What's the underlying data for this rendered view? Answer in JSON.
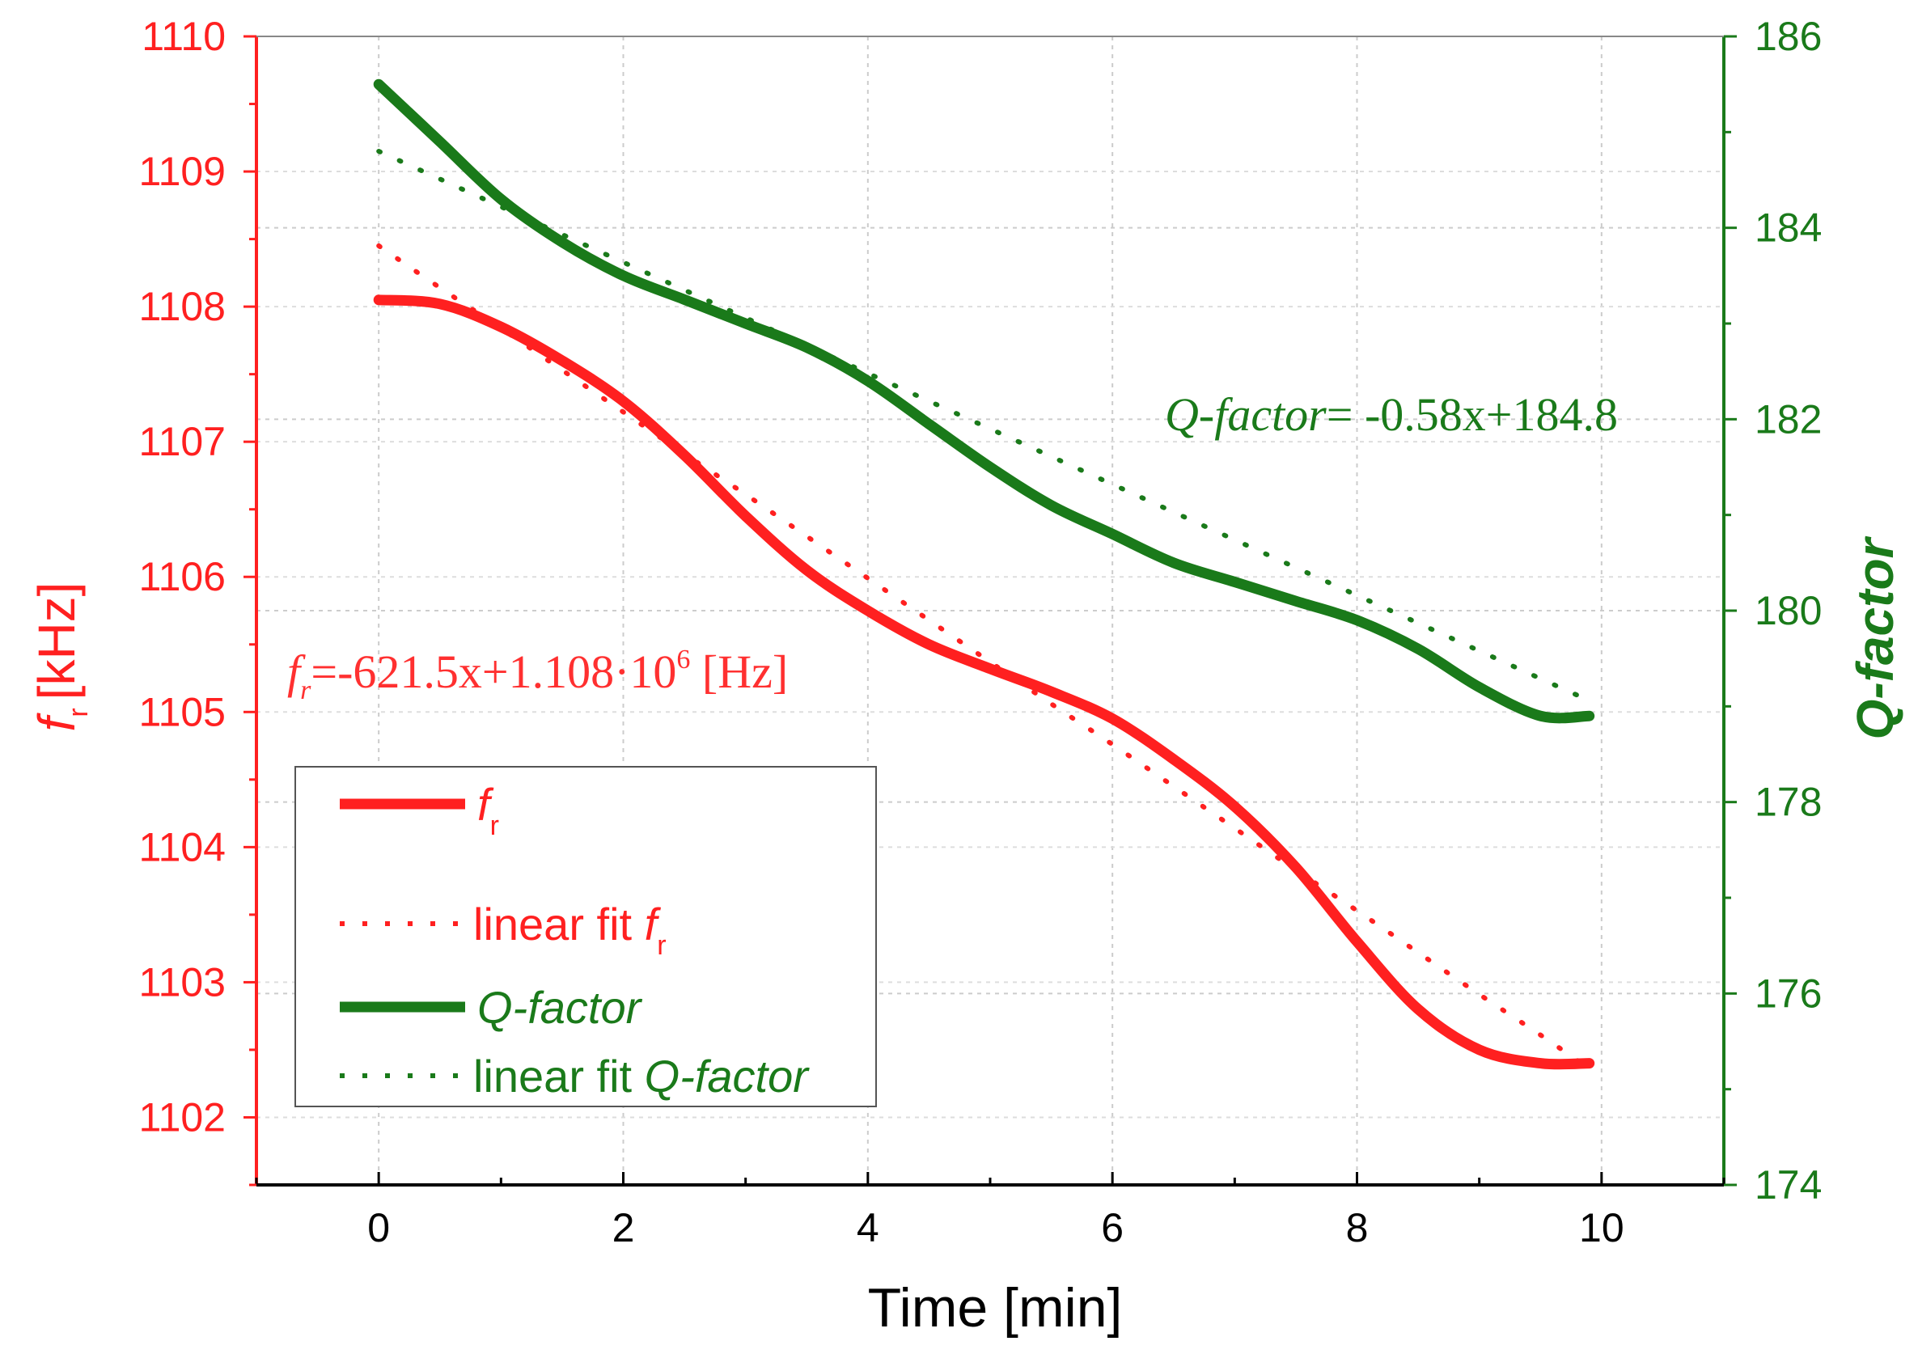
{
  "chart_data": {
    "type": "line",
    "x": [
      0,
      0.5,
      1,
      1.5,
      2,
      2.5,
      3,
      3.5,
      4,
      4.5,
      5,
      5.5,
      6,
      6.5,
      7,
      7.5,
      8,
      8.5,
      9,
      9.5,
      9.9
    ],
    "xlabel": "Time [min]",
    "xlim": [
      -1,
      11
    ],
    "xticks": [
      "0",
      "2",
      "4",
      "6",
      "8",
      "10"
    ],
    "y_left": {
      "label_main": "f",
      "label_sub": "r",
      "label_unit": "[kHz]",
      "lim": [
        1101.5,
        1110
      ],
      "ticks": [
        "1102",
        "1103",
        "1104",
        "1105",
        "1106",
        "1107",
        "1108",
        "1109",
        "1110"
      ],
      "color": "#ff2020"
    },
    "y_right": {
      "label": "Q-factor",
      "lim": [
        174,
        186
      ],
      "ticks": [
        "174",
        "176",
        "178",
        "180",
        "182",
        "184",
        "186"
      ],
      "color": "#1a7a1a"
    },
    "series": [
      {
        "name": "f_r",
        "axis": "left",
        "style": "solid",
        "color": "#ff2020",
        "values": [
          1108.05,
          1108.02,
          1107.85,
          1107.6,
          1107.3,
          1106.9,
          1106.45,
          1106.05,
          1105.75,
          1105.5,
          1105.32,
          1105.15,
          1104.95,
          1104.65,
          1104.3,
          1103.85,
          1103.3,
          1102.8,
          1102.5,
          1102.4,
          1102.4
        ]
      },
      {
        "name": "linear fit f_r",
        "axis": "left",
        "style": "dotted",
        "color": "#ff2020",
        "values": [
          1108.45,
          1108.14,
          1107.84,
          1107.53,
          1107.22,
          1106.91,
          1106.61,
          1106.3,
          1105.99,
          1105.68,
          1105.37,
          1105.06,
          1104.76,
          1104.45,
          1104.14,
          1103.83,
          1103.53,
          1103.22,
          1102.91,
          1102.61,
          1102.36
        ]
      },
      {
        "name": "Q-factor",
        "axis": "right",
        "style": "solid",
        "color": "#1a7a1a",
        "values": [
          185.5,
          184.9,
          184.3,
          183.85,
          183.5,
          183.25,
          183.0,
          182.75,
          182.4,
          181.95,
          181.5,
          181.1,
          180.8,
          180.5,
          180.3,
          180.1,
          179.9,
          179.6,
          179.2,
          178.9,
          178.9
        ]
      },
      {
        "name": "linear fit Q-factor",
        "axis": "right",
        "style": "dotted",
        "color": "#1a7a1a",
        "values": [
          184.8,
          184.51,
          184.22,
          183.93,
          183.64,
          183.35,
          183.06,
          182.77,
          182.48,
          182.19,
          181.9,
          181.61,
          181.32,
          181.03,
          180.74,
          180.45,
          180.16,
          179.87,
          179.58,
          179.29,
          179.06
        ]
      }
    ],
    "annotations": {
      "fr_fit": {
        "f": "f",
        "sub": "r",
        "eq": "=-621.5x+1.108·10",
        "sup": "6",
        "unit": " [Hz]"
      },
      "q_fit": {
        "name": "Q-factor",
        "eq": "= -0.58x+184.8"
      }
    },
    "legend": {
      "placement": "lower-left",
      "items": [
        {
          "text": "f",
          "sub": "r",
          "italic": true,
          "color": "#ff2020",
          "style": "solid"
        },
        {
          "text": "linear fit ",
          "italic_part": "f",
          "sub": "r",
          "color": "#ff2020",
          "style": "dotted"
        },
        {
          "text": "Q-factor",
          "italic": true,
          "color": "#1a7a1a",
          "style": "solid"
        },
        {
          "text": "linear fit ",
          "italic_part": "Q-factor",
          "color": "#1a7a1a",
          "style": "dotted"
        }
      ]
    },
    "grid": true
  }
}
